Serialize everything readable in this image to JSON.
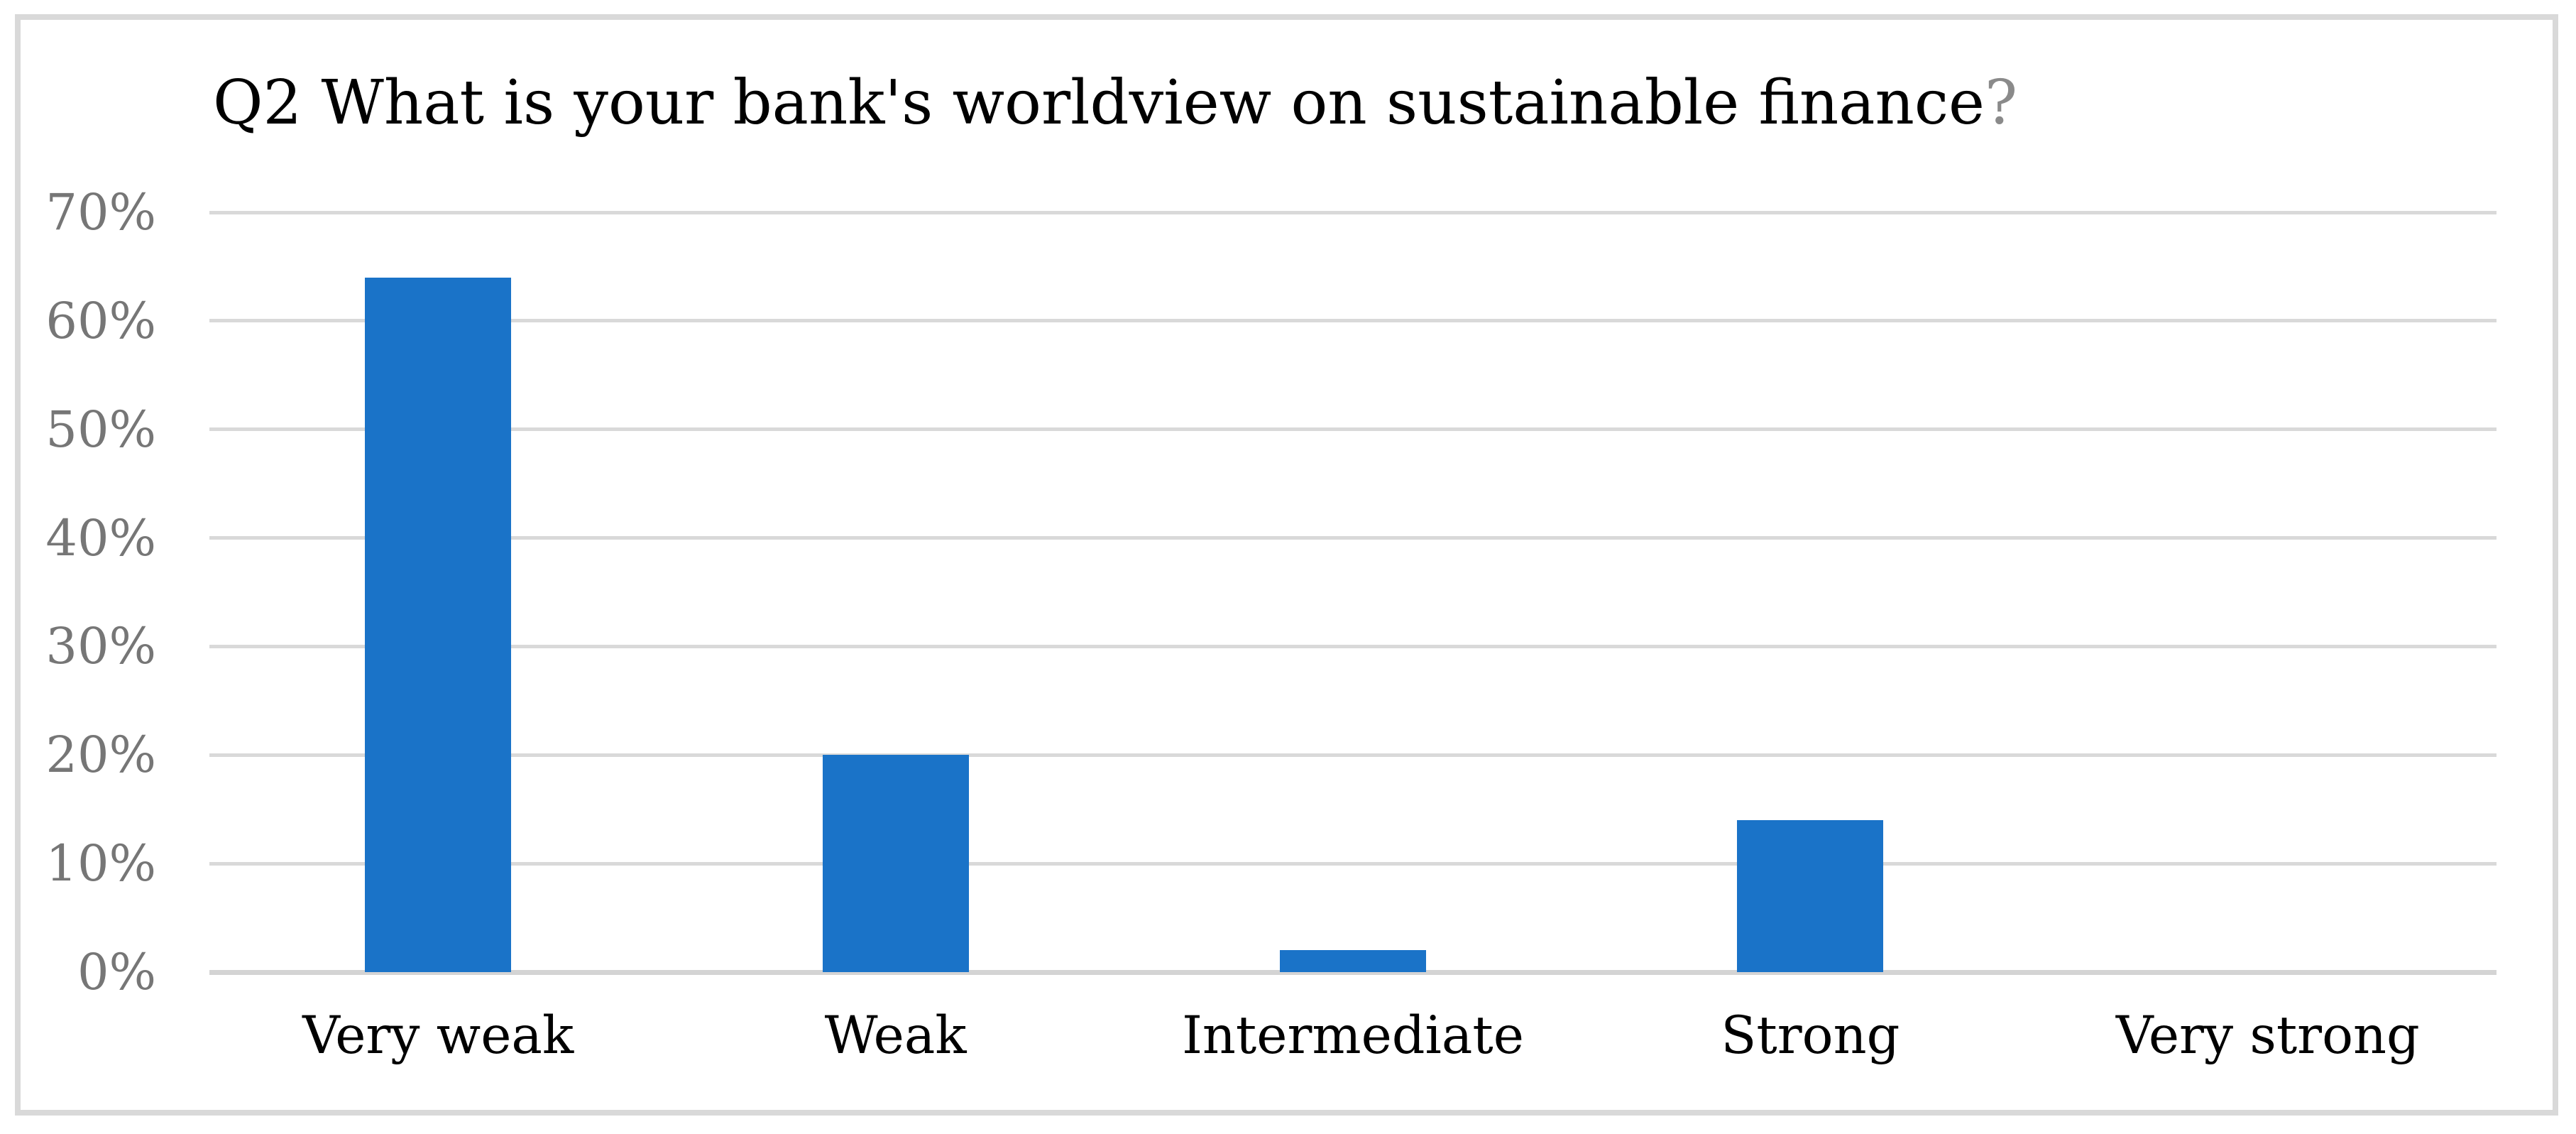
{
  "chart_data": {
    "type": "bar",
    "title": "Q2 What is your bank's worldview on sustainable finance?",
    "title_text": "Q2 What is your bank's worldview on sustainable finance",
    "title_suffix": "?",
    "categories": [
      "Very weak",
      "Weak",
      "Intermediate",
      "Strong",
      "Very strong"
    ],
    "values": [
      64,
      20,
      2,
      14,
      0
    ],
    "unit": "%",
    "xlabel": "",
    "ylabel": "",
    "ylim": [
      0,
      70
    ],
    "ytick_step": 10,
    "ytick_labels": [
      "0%",
      "10%",
      "20%",
      "30%",
      "40%",
      "50%",
      "60%",
      "70%"
    ],
    "grid": "horizontal",
    "legend": "none",
    "colors": {
      "bar": "#1A73C8",
      "gridline": "#D9D9D9",
      "axis_line": "#D4D4D4",
      "frame_border": "#D9D9D9",
      "y_tick_label": "#767676",
      "x_tick_label": "#000000",
      "title": "#000000",
      "title_question_mark": "#8A8A8A",
      "background": "#FFFFFF"
    }
  }
}
